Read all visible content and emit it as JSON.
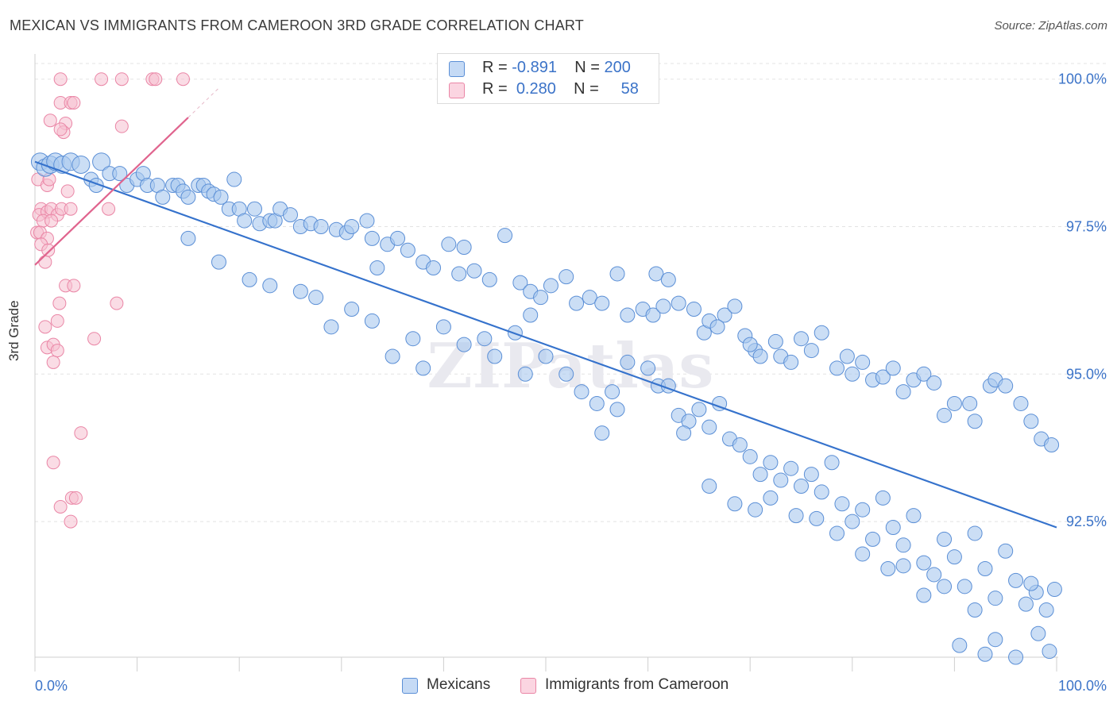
{
  "title": "MEXICAN VS IMMIGRANTS FROM CAMEROON 3RD GRADE CORRELATION CHART",
  "source": "Source: ZipAtlas.com",
  "watermark": "ZIPatlas",
  "legend": {
    "rows": [
      {
        "r_label": "R =",
        "r_value": "-0.891",
        "n_label": "N =",
        "n_value": "200"
      },
      {
        "r_label": "R =",
        "r_value": "0.280",
        "n_label": "N =",
        "n_value": "58"
      }
    ]
  },
  "bottom_legend": [
    "Mexicans",
    "Immigrants from Cameroon"
  ],
  "colors": {
    "blue_fill": "#a9c8ef",
    "blue_stroke": "#5b8fd6",
    "blue_line": "#3572cc",
    "pink_fill": "#f6bfd0",
    "pink_stroke": "#ea86a6",
    "pink_line": "#e0648e",
    "grid": "#e3e3e3",
    "tick_label": "#3b73c8"
  },
  "chart_data": {
    "type": "scatter",
    "title": "MEXICAN VS IMMIGRANTS FROM CAMEROON 3RD GRADE CORRELATION CHART",
    "xlabel": "",
    "ylabel": "3rd Grade",
    "x_tick_labels": [
      "0.0%",
      "100.0%"
    ],
    "y_tick_labels": [
      "92.5%",
      "95.0%",
      "97.5%",
      "100.0%"
    ],
    "y_ticks": [
      92.5,
      95.0,
      97.5,
      100.0
    ],
    "xlim": [
      0,
      100
    ],
    "ylim": [
      90.2,
      100.4
    ],
    "grid": true,
    "legend_position": "top-center",
    "series": [
      {
        "name": "Mexicans",
        "r": -0.891,
        "n": 200,
        "trend": {
          "x": [
            0,
            100
          ],
          "y": [
            98.6,
            92.4
          ]
        },
        "points": [
          [
            0.5,
            98.6
          ],
          [
            1,
            98.5
          ],
          [
            1.5,
            98.55
          ],
          [
            2,
            98.6
          ],
          [
            2.7,
            98.55
          ],
          [
            3.5,
            98.6
          ],
          [
            4.5,
            98.55
          ],
          [
            6.5,
            98.6
          ],
          [
            5.5,
            98.3
          ],
          [
            6,
            98.2
          ],
          [
            7.3,
            98.4
          ],
          [
            8.3,
            98.4
          ],
          [
            9,
            98.2
          ],
          [
            10,
            98.3
          ],
          [
            10.6,
            98.4
          ],
          [
            11,
            98.2
          ],
          [
            12,
            98.2
          ],
          [
            12.5,
            98.0
          ],
          [
            13.5,
            98.2
          ],
          [
            14,
            98.2
          ],
          [
            14.5,
            98.1
          ],
          [
            15,
            98.0
          ],
          [
            16,
            98.2
          ],
          [
            16.5,
            98.2
          ],
          [
            17,
            98.1
          ],
          [
            17.5,
            98.05
          ],
          [
            18.2,
            98.0
          ],
          [
            19,
            97.8
          ],
          [
            20,
            97.8
          ],
          [
            20.5,
            97.6
          ],
          [
            21.5,
            97.8
          ],
          [
            22,
            97.55
          ],
          [
            23,
            97.6
          ],
          [
            23.5,
            97.6
          ],
          [
            24,
            97.8
          ],
          [
            25,
            97.7
          ],
          [
            26,
            97.5
          ],
          [
            27,
            97.55
          ],
          [
            28,
            97.5
          ],
          [
            29.5,
            97.45
          ],
          [
            30.5,
            97.4
          ],
          [
            31,
            97.5
          ],
          [
            32.5,
            97.6
          ],
          [
            33,
            97.3
          ],
          [
            34.5,
            97.2
          ],
          [
            35.5,
            97.3
          ],
          [
            36.5,
            97.1
          ],
          [
            38,
            96.9
          ],
          [
            39,
            96.8
          ],
          [
            40.5,
            97.2
          ],
          [
            42,
            97.15
          ],
          [
            43,
            96.75
          ],
          [
            44.5,
            96.6
          ],
          [
            46,
            97.35
          ],
          [
            47.5,
            96.55
          ],
          [
            48.5,
            96.4
          ],
          [
            49.5,
            96.3
          ],
          [
            50.5,
            96.5
          ],
          [
            52,
            96.65
          ],
          [
            53,
            96.2
          ],
          [
            54.3,
            96.3
          ],
          [
            55.5,
            96.2
          ],
          [
            57,
            96.7
          ],
          [
            58,
            96.0
          ],
          [
            59.5,
            96.1
          ],
          [
            60.5,
            96.0
          ],
          [
            61.5,
            96.15
          ],
          [
            63,
            96.2
          ],
          [
            64.5,
            96.1
          ],
          [
            65.5,
            95.7
          ],
          [
            66,
            95.9
          ],
          [
            67.5,
            96.0
          ],
          [
            68.5,
            96.15
          ],
          [
            69.5,
            95.65
          ],
          [
            70.5,
            95.4
          ],
          [
            71,
            95.3
          ],
          [
            72.5,
            95.55
          ],
          [
            73,
            95.3
          ],
          [
            74,
            95.2
          ],
          [
            75,
            95.6
          ],
          [
            76,
            95.4
          ],
          [
            77,
            95.7
          ],
          [
            78.5,
            95.1
          ],
          [
            79.5,
            95.3
          ],
          [
            80,
            95.0
          ],
          [
            81,
            95.2
          ],
          [
            82,
            94.9
          ],
          [
            83,
            94.95
          ],
          [
            84,
            95.1
          ],
          [
            85,
            94.7
          ],
          [
            86,
            94.9
          ],
          [
            87,
            95.0
          ],
          [
            88,
            94.85
          ],
          [
            89,
            94.3
          ],
          [
            90,
            94.5
          ],
          [
            91.5,
            94.5
          ],
          [
            92,
            94.2
          ],
          [
            93.5,
            94.8
          ],
          [
            94,
            94.9
          ],
          [
            95,
            94.8
          ],
          [
            96.5,
            94.5
          ],
          [
            97.5,
            94.2
          ],
          [
            98.5,
            93.9
          ],
          [
            99.5,
            93.8
          ],
          [
            15,
            97.3
          ],
          [
            18,
            96.9
          ],
          [
            21,
            96.6
          ],
          [
            23,
            96.5
          ],
          [
            26,
            96.4
          ],
          [
            27.5,
            96.3
          ],
          [
            29,
            95.8
          ],
          [
            31,
            96.1
          ],
          [
            33,
            95.9
          ],
          [
            35,
            95.3
          ],
          [
            37,
            95.6
          ],
          [
            38,
            95.1
          ],
          [
            40,
            95.8
          ],
          [
            42,
            95.5
          ],
          [
            44,
            95.6
          ],
          [
            45,
            95.3
          ],
          [
            47,
            95.7
          ],
          [
            48,
            95.0
          ],
          [
            50,
            95.3
          ],
          [
            52,
            95.0
          ],
          [
            53.5,
            94.7
          ],
          [
            55,
            94.5
          ],
          [
            56.5,
            94.7
          ],
          [
            58,
            95.2
          ],
          [
            60,
            95.1
          ],
          [
            61,
            94.8
          ],
          [
            62,
            94.8
          ],
          [
            63,
            94.3
          ],
          [
            64,
            94.2
          ],
          [
            65,
            94.4
          ],
          [
            66,
            94.1
          ],
          [
            67,
            94.5
          ],
          [
            68,
            93.9
          ],
          [
            69,
            93.8
          ],
          [
            70,
            93.6
          ],
          [
            71,
            93.3
          ],
          [
            72,
            93.5
          ],
          [
            73,
            93.2
          ],
          [
            74,
            93.4
          ],
          [
            75,
            93.1
          ],
          [
            76,
            93.3
          ],
          [
            77,
            93.0
          ],
          [
            78,
            93.5
          ],
          [
            79,
            92.8
          ],
          [
            80,
            92.5
          ],
          [
            81,
            92.7
          ],
          [
            82,
            92.2
          ],
          [
            83,
            92.9
          ],
          [
            84,
            92.4
          ],
          [
            85,
            92.1
          ],
          [
            86,
            92.6
          ],
          [
            87,
            91.8
          ],
          [
            88,
            91.6
          ],
          [
            89,
            92.2
          ],
          [
            90,
            91.9
          ],
          [
            91,
            91.4
          ],
          [
            92,
            92.3
          ],
          [
            93,
            91.7
          ],
          [
            94,
            91.2
          ],
          [
            95,
            92.0
          ],
          [
            96,
            91.5
          ],
          [
            97,
            91.1
          ],
          [
            98,
            91.3
          ],
          [
            99,
            91.0
          ],
          [
            55.5,
            94.0
          ],
          [
            57,
            94.4
          ],
          [
            63.5,
            94.0
          ],
          [
            66,
            93.1
          ],
          [
            68.5,
            92.8
          ],
          [
            70.5,
            92.7
          ],
          [
            72,
            92.9
          ],
          [
            74.5,
            92.6
          ],
          [
            76.5,
            92.55
          ],
          [
            78.5,
            92.3
          ],
          [
            81,
            91.95
          ],
          [
            83.5,
            91.7
          ],
          [
            85,
            91.75
          ],
          [
            87,
            91.25
          ],
          [
            89,
            91.4
          ],
          [
            90.5,
            90.4
          ],
          [
            92,
            91.0
          ],
          [
            94,
            90.5
          ],
          [
            96,
            90.2
          ],
          [
            98.2,
            90.6
          ],
          [
            99.3,
            90.3
          ],
          [
            99.8,
            91.35
          ],
          [
            97.5,
            91.45
          ],
          [
            93,
            90.25
          ],
          [
            19.5,
            98.3
          ],
          [
            33.5,
            96.8
          ],
          [
            41.5,
            96.7
          ],
          [
            48.5,
            96.0
          ],
          [
            60.8,
            96.7
          ],
          [
            62,
            96.6
          ],
          [
            66.8,
            95.8
          ],
          [
            70,
            95.5
          ]
        ]
      },
      {
        "name": "Immigrants from Cameroon",
        "r": 0.28,
        "n": 58,
        "trend": {
          "x": [
            0,
            15
          ],
          "y": [
            96.85,
            99.35
          ]
        },
        "points": [
          [
            2.5,
            100.0
          ],
          [
            6.5,
            100.0
          ],
          [
            8.5,
            100.0
          ],
          [
            11.5,
            100.0
          ],
          [
            11.8,
            100.0
          ],
          [
            14.5,
            100.0
          ],
          [
            2.5,
            99.6
          ],
          [
            3.5,
            99.6
          ],
          [
            3.8,
            99.6
          ],
          [
            1.5,
            99.3
          ],
          [
            3,
            99.25
          ],
          [
            2.8,
            99.1
          ],
          [
            8.5,
            99.2
          ],
          [
            2.5,
            99.15
          ],
          [
            0.3,
            98.3
          ],
          [
            1.2,
            98.2
          ],
          [
            1.4,
            98.3
          ],
          [
            0.6,
            97.8
          ],
          [
            0.4,
            97.7
          ],
          [
            1.2,
            97.75
          ],
          [
            1.6,
            97.8
          ],
          [
            2.2,
            97.7
          ],
          [
            2.6,
            97.8
          ],
          [
            3.5,
            97.8
          ],
          [
            0.8,
            97.6
          ],
          [
            1.6,
            97.6
          ],
          [
            0.2,
            97.4
          ],
          [
            0.5,
            97.4
          ],
          [
            1.2,
            97.3
          ],
          [
            0.6,
            97.2
          ],
          [
            1.3,
            97.1
          ],
          [
            3.2,
            98.1
          ],
          [
            7.2,
            97.8
          ],
          [
            3,
            96.5
          ],
          [
            3.8,
            96.5
          ],
          [
            1,
            96.9
          ],
          [
            2.4,
            96.2
          ],
          [
            8,
            96.2
          ],
          [
            2.2,
            95.9
          ],
          [
            1,
            95.8
          ],
          [
            1.2,
            95.45
          ],
          [
            1.8,
            95.5
          ],
          [
            1.8,
            95.2
          ],
          [
            5.8,
            95.6
          ],
          [
            2.2,
            95.4
          ],
          [
            4.5,
            94.0
          ],
          [
            1.8,
            93.5
          ],
          [
            3.6,
            92.9
          ],
          [
            4.0,
            92.9
          ],
          [
            2.5,
            92.75
          ],
          [
            3.5,
            92.5
          ]
        ]
      }
    ]
  }
}
